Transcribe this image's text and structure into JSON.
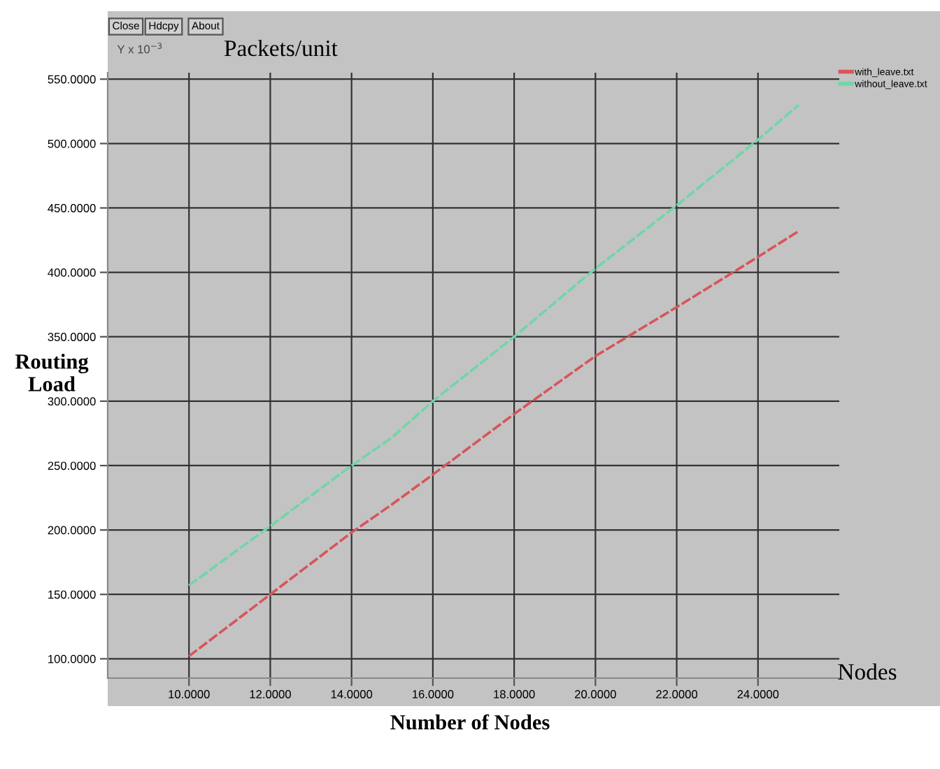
{
  "chart_data": {
    "type": "line",
    "xlabel": "Number of Nodes",
    "ylabel": "Routing\nLoad",
    "annotations": [
      "Close",
      "Hdcpy",
      "About",
      "Y x 10$^{−3}$",
      "Packets/unit",
      "Nodes"
    ],
    "x": [
      10,
      12,
      14,
      15,
      16,
      18,
      20,
      22,
      24,
      25
    ],
    "series": [
      {
        "name": "with_leave.txt",
        "color": "#d9545a",
        "values": [
          102,
          150,
          198,
          220,
          243,
          290,
          335,
          373,
          412,
          432
        ]
      },
      {
        "name": "without_leave.txt",
        "color": "#6fd6a8",
        "values": [
          157,
          203,
          250,
          272,
          300,
          350,
          403,
          452,
          503,
          530
        ]
      }
    ],
    "xlim": [
      8,
      26
    ],
    "ylim": [
      85,
      555
    ],
    "xticks": [
      {
        "value": 10,
        "label": "10.0000"
      },
      {
        "value": 12,
        "label": "12.0000"
      },
      {
        "value": 14,
        "label": "14.0000"
      },
      {
        "value": 16,
        "label": "16.0000"
      },
      {
        "value": 18,
        "label": "18.0000"
      },
      {
        "value": 20,
        "label": "20.0000"
      },
      {
        "value": 22,
        "label": "22.0000"
      },
      {
        "value": 24,
        "label": "24.0000"
      }
    ],
    "yticks": [
      {
        "value": 100,
        "label": "100.0000"
      },
      {
        "value": 150,
        "label": "150.0000"
      },
      {
        "value": 200,
        "label": "200.0000"
      },
      {
        "value": 250,
        "label": "250.0000"
      },
      {
        "value": 300,
        "label": "300.0000"
      },
      {
        "value": 350,
        "label": "350.0000"
      },
      {
        "value": 400,
        "label": "400.0000"
      },
      {
        "value": 450,
        "label": "450.0000"
      },
      {
        "value": 500,
        "label": "500.0000"
      },
      {
        "value": 550,
        "label": "550.0000"
      }
    ],
    "grid": true,
    "legend": "top right",
    "marker": "none",
    "line_style": "dashed"
  }
}
